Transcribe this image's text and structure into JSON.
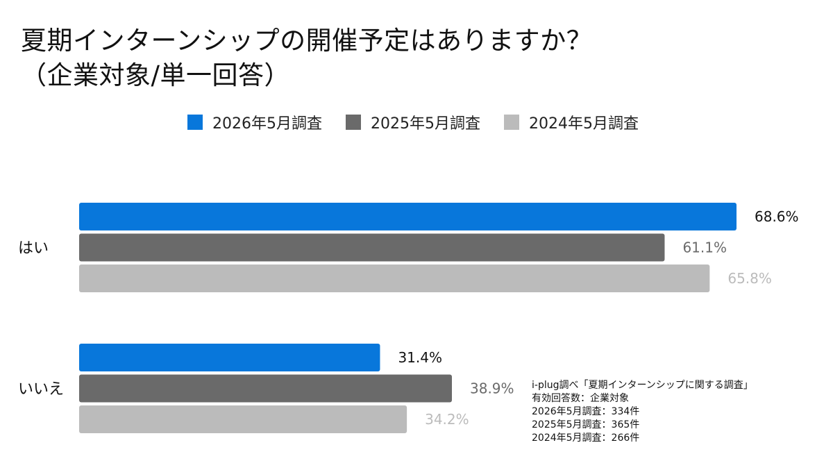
{
  "title": {
    "line1": "夏期インターンシップの開催予定はありますか？",
    "line2": "（企業対象/単一回答）"
  },
  "chart_data": {
    "type": "bar",
    "orientation": "horizontal",
    "categories": [
      "はい",
      "いいえ"
    ],
    "series": [
      {
        "name": "2026年5月調査",
        "values": [
          68.6,
          31.4
        ],
        "labels": [
          "68.6%",
          "31.4%"
        ],
        "color": "#0877DB",
        "label_color": "#111111"
      },
      {
        "name": "2025年5月調査",
        "values": [
          61.1,
          38.9
        ],
        "labels": [
          "61.1%",
          "38.9%"
        ],
        "color": "#6A6A6A",
        "label_color": "#6A6A6A"
      },
      {
        "name": "2024年5月調査",
        "values": [
          65.8,
          34.2
        ],
        "labels": [
          "65.8%",
          "34.2%"
        ],
        "color": "#BBBBBB",
        "label_color": "#BBBBBB"
      }
    ],
    "xlim": [
      0,
      100
    ],
    "grid": false,
    "legend_position": "top"
  },
  "note": {
    "lines": [
      "i-plug調べ「夏期インターンシップに関する調査」",
      "有効回答数：企業対象",
      "2026年5月調査：334件",
      "2025年5月調査：365件",
      "2024年5月調査：266件"
    ]
  }
}
